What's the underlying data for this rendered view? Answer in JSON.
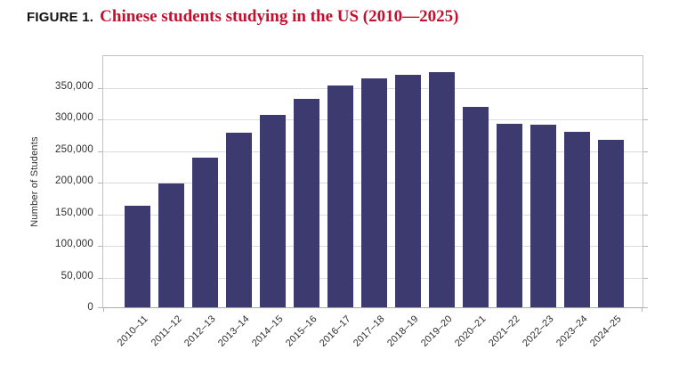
{
  "figure": {
    "label": "FIGURE 1.",
    "title": "Chinese students studying in the US (2010—2025)",
    "title_color": "#c40f2f"
  },
  "chart_data": {
    "type": "bar",
    "title": "Chinese students studying in the US (2010—2025)",
    "categories": [
      "2010–11",
      "2011–12",
      "2012–13",
      "2013–14",
      "2014–15",
      "2015–16",
      "2016–17",
      "2017–18",
      "2018–19",
      "2019–20",
      "2020–21",
      "2021–22",
      "2022–23",
      "2023–24",
      "2024–25"
    ],
    "values": [
      160000,
      196000,
      237000,
      276000,
      304000,
      330000,
      351000,
      362000,
      368000,
      372000,
      317000,
      290000,
      289000,
      278000,
      265000
    ],
    "xlabel": "",
    "ylabel": "Number of Students",
    "ylim": [
      0,
      400000
    ],
    "yticks": [
      0,
      50000,
      100000,
      150000,
      200000,
      250000,
      300000,
      350000
    ],
    "ytick_labels": [
      "0",
      "50,000",
      "100,000",
      "150,000",
      "200,000",
      "250,000",
      "300,000",
      "350,000"
    ],
    "grid": true,
    "legend_position": "none",
    "bar_color": "#3d3a70",
    "gridline_color": "#dcdcdc"
  }
}
